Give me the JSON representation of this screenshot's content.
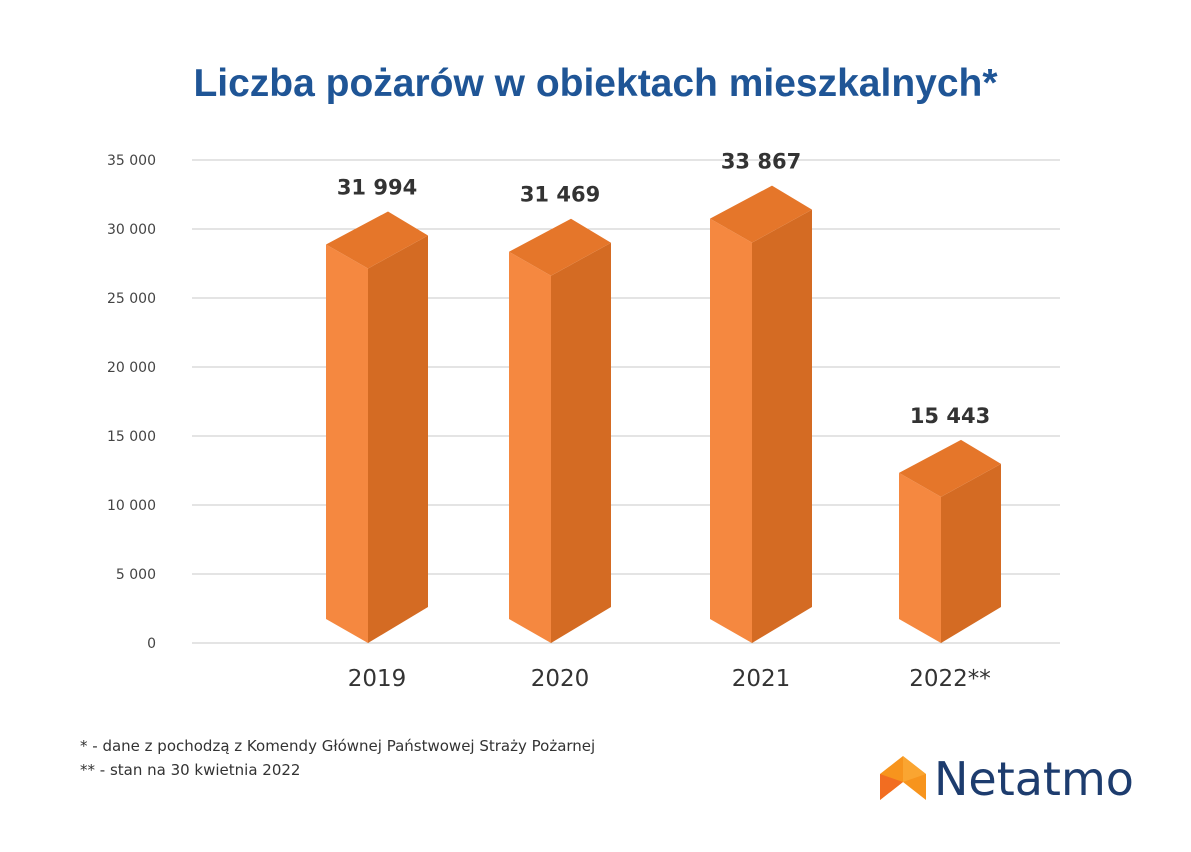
{
  "chart_data": {
    "type": "bar",
    "title": "Liczba pożarów w obiektach mieszkalnych*",
    "categories": [
      "2019",
      "2020",
      "2021",
      "2022**"
    ],
    "values": [
      31994,
      31469,
      33867,
      15443
    ],
    "value_labels": [
      "31 994",
      "31 469",
      "33 867",
      "15 443"
    ],
    "ylim": [
      0,
      35000
    ],
    "yticks": [
      0,
      5000,
      10000,
      15000,
      20000,
      25000,
      30000,
      35000
    ],
    "ytick_labels": [
      "0",
      "5 000",
      "10 000",
      "15 000",
      "20 000",
      "25 000",
      "30 000",
      "35 000"
    ],
    "grid": true,
    "xlabel": "",
    "ylabel": "",
    "colors": {
      "front": "#f58840",
      "side": "#d46b23",
      "top": "#e5762a",
      "grid": "#c8c8c8"
    }
  },
  "footnotes": [
    "* - dane z pochodzą z Komendy Głównej Państwowej Straży Pożarnej",
    "** - stan na 30 kwietnia 2022"
  ],
  "logo": {
    "text": "Netatmo"
  }
}
